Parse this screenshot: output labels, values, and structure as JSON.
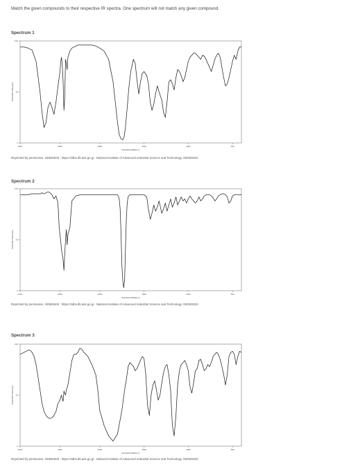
{
  "instruction": "Match the given compounds to their respective IR spectra. One spectrum will not match any given compound.",
  "credit": "Reprinted by permission. SDBSWeb : https://sdbs.db.aist.go.jp - National Institute of Advanced Industrial Science and Technology. 06/09/2022",
  "chart_data": [
    {
      "type": "line",
      "title": "Spectrum 1",
      "xlabel": "WAVENUMBER(-1)",
      "ylabel": "TRANSMITTANCE(%)",
      "xlim": [
        4000,
        400
      ],
      "ylim": [
        0,
        100
      ],
      "x_ticks": [
        "4000",
        "3000",
        "2000",
        "1500",
        "1000",
        "500"
      ],
      "y_ticks": [
        "100",
        "50",
        "0"
      ],
      "series": [
        {
          "x": [
            4000,
            3900,
            3800,
            3700,
            3600,
            3500,
            3450,
            3400,
            3350,
            3300,
            3250,
            3200,
            3150,
            3100,
            3050,
            3000,
            2980,
            2960,
            2940,
            2920,
            2900,
            2880,
            2860,
            2840,
            2820,
            2800,
            2750,
            2700,
            2650,
            2600,
            2550,
            2500,
            2400,
            2300,
            2200,
            2100,
            2050,
            2000,
            1950,
            1900,
            1850,
            1800,
            1780,
            1760,
            1740,
            1725,
            1710,
            1690,
            1670,
            1650,
            1620,
            1600,
            1580,
            1560,
            1540,
            1520,
            1500,
            1470,
            1450,
            1430,
            1410,
            1390,
            1370,
            1350,
            1330,
            1300,
            1280,
            1260,
            1240,
            1220,
            1200,
            1180,
            1160,
            1140,
            1120,
            1100,
            1080,
            1060,
            1040,
            1020,
            1000,
            980,
            960,
            940,
            920,
            900,
            880,
            860,
            840,
            820,
            800,
            780,
            760,
            740,
            720,
            700,
            680,
            660,
            640,
            620,
            600,
            580,
            560,
            540,
            520,
            500,
            480,
            460,
            440,
            420,
            400
          ],
          "y": [
            94,
            94,
            93,
            91,
            80,
            50,
            30,
            15,
            20,
            35,
            40,
            35,
            28,
            40,
            55,
            70,
            80,
            84,
            75,
            60,
            32,
            45,
            82,
            78,
            72,
            84,
            90,
            93,
            94,
            95,
            96,
            96,
            96,
            96,
            96,
            95,
            94,
            93,
            90,
            82,
            60,
            20,
            8,
            4,
            3,
            6,
            15,
            35,
            55,
            70,
            82,
            78,
            62,
            48,
            60,
            68,
            70,
            66,
            58,
            40,
            32,
            38,
            48,
            56,
            50,
            42,
            30,
            25,
            40,
            60,
            62,
            58,
            52,
            64,
            72,
            70,
            66,
            60,
            64,
            72,
            80,
            84,
            86,
            88,
            88,
            86,
            84,
            82,
            86,
            85,
            82,
            78,
            74,
            70,
            76,
            82,
            86,
            88,
            84,
            74,
            64,
            56,
            58,
            64,
            72,
            80,
            86,
            82,
            90,
            94,
            94
          ]
        }
      ]
    },
    {
      "type": "line",
      "title": "Spectrum 2",
      "xlabel": "WAVENUMBER(-1)",
      "ylabel": "TRANSMITTANCE(%)",
      "xlim": [
        4000,
        400
      ],
      "ylim": [
        0,
        100
      ],
      "x_ticks": [
        "4000",
        "3000",
        "2000",
        "1500",
        "1000",
        "500"
      ],
      "y_ticks": [
        "100",
        "50",
        "0"
      ],
      "series": [
        {
          "x": [
            4000,
            3900,
            3800,
            3700,
            3600,
            3500,
            3450,
            3400,
            3350,
            3300,
            3250,
            3200,
            3150,
            3120,
            3100,
            3080,
            3060,
            3040,
            3020,
            3000,
            2980,
            2960,
            2940,
            2920,
            2900,
            2880,
            2860,
            2840,
            2820,
            2800,
            2750,
            2700,
            2600,
            2500,
            2400,
            2300,
            2200,
            2100,
            2000,
            1950,
            1900,
            1850,
            1800,
            1790,
            1780,
            1770,
            1760,
            1750,
            1740,
            1730,
            1720,
            1710,
            1700,
            1690,
            1680,
            1660,
            1640,
            1600,
            1560,
            1520,
            1500,
            1470,
            1450,
            1430,
            1410,
            1390,
            1370,
            1350,
            1330,
            1300,
            1280,
            1260,
            1240,
            1220,
            1200,
            1180,
            1160,
            1140,
            1120,
            1100,
            1080,
            1060,
            1040,
            1020,
            1000,
            980,
            960,
            940,
            920,
            900,
            880,
            860,
            840,
            820,
            800,
            780,
            760,
            740,
            720,
            700,
            680,
            660,
            640,
            620,
            600,
            580,
            560,
            540,
            520,
            500,
            480,
            460,
            440,
            420,
            400
          ],
          "y": [
            94,
            94,
            94,
            95,
            95,
            95,
            96,
            95,
            96,
            97,
            96,
            94,
            90,
            92,
            93,
            90,
            88,
            80,
            62,
            55,
            48,
            40,
            35,
            30,
            20,
            36,
            50,
            60,
            45,
            55,
            62,
            88,
            93,
            94,
            94,
            94,
            94,
            94,
            94,
            94,
            94,
            94,
            94,
            93,
            90,
            80,
            55,
            25,
            10,
            3,
            10,
            40,
            70,
            86,
            92,
            94,
            94,
            94,
            94,
            94,
            94,
            92,
            80,
            70,
            76,
            84,
            78,
            82,
            88,
            76,
            80,
            86,
            78,
            84,
            90,
            82,
            86,
            92,
            84,
            88,
            92,
            88,
            90,
            86,
            90,
            93,
            90,
            88,
            86,
            88,
            92,
            88,
            90,
            93,
            94,
            94,
            94,
            93,
            91,
            88,
            90,
            93,
            94,
            95,
            95,
            94,
            92,
            86,
            88,
            93,
            94,
            94,
            94,
            94,
            94
          ]
        }
      ]
    },
    {
      "type": "line",
      "title": "Spectrum 3",
      "xlabel": "WAVENUMBER(-1)",
      "ylabel": "TRANSMITTANCE(%)",
      "xlim": [
        4000,
        400
      ],
      "ylim": [
        0,
        100
      ],
      "x_ticks": [
        "4000",
        "3000",
        "2000",
        "1500",
        "1000",
        "500"
      ],
      "y_ticks": [
        "100",
        "50",
        "0"
      ],
      "series": [
        {
          "x": [
            4000,
            3950,
            3900,
            3850,
            3800,
            3750,
            3700,
            3650,
            3600,
            3550,
            3500,
            3450,
            3400,
            3350,
            3300,
            3250,
            3200,
            3150,
            3100,
            3050,
            3000,
            2980,
            2960,
            2940,
            2920,
            2900,
            2880,
            2860,
            2840,
            2800,
            2750,
            2700,
            2650,
            2600,
            2550,
            2500,
            2450,
            2400,
            2300,
            2200,
            2100,
            2050,
            2000,
            1950,
            1900,
            1850,
            1800,
            1750,
            1720,
            1700,
            1680,
            1660,
            1640,
            1620,
            1600,
            1580,
            1560,
            1540,
            1520,
            1500,
            1480,
            1460,
            1440,
            1420,
            1400,
            1380,
            1360,
            1340,
            1320,
            1300,
            1280,
            1260,
            1240,
            1220,
            1200,
            1180,
            1160,
            1140,
            1120,
            1100,
            1080,
            1060,
            1040,
            1020,
            1000,
            980,
            960,
            940,
            920,
            900,
            880,
            860,
            840,
            820,
            800,
            780,
            760,
            740,
            720,
            700,
            680,
            660,
            640,
            620,
            600,
            580,
            560,
            540,
            520,
            500,
            480,
            460,
            440,
            420,
            400
          ],
          "y": [
            90,
            91,
            92,
            93,
            94,
            94,
            92,
            88,
            80,
            68,
            55,
            42,
            34,
            30,
            28,
            27,
            28,
            30,
            34,
            42,
            45,
            48,
            50,
            46,
            44,
            54,
            52,
            50,
            55,
            60,
            72,
            84,
            90,
            90,
            92,
            96,
            95,
            92,
            88,
            80,
            70,
            55,
            35,
            20,
            10,
            5,
            12,
            35,
            55,
            65,
            78,
            82,
            80,
            78,
            74,
            76,
            80,
            84,
            88,
            86,
            70,
            40,
            30,
            50,
            60,
            64,
            55,
            45,
            50,
            62,
            72,
            78,
            80,
            70,
            55,
            20,
            10,
            30,
            60,
            74,
            80,
            82,
            84,
            80,
            74,
            58,
            52,
            62,
            74,
            76,
            84,
            85,
            80,
            74,
            76,
            80,
            78,
            82,
            88,
            90,
            92,
            90,
            85,
            78,
            70,
            60,
            70,
            88,
            92,
            93,
            90,
            80,
            88,
            93,
            92
          ]
        }
      ]
    }
  ]
}
